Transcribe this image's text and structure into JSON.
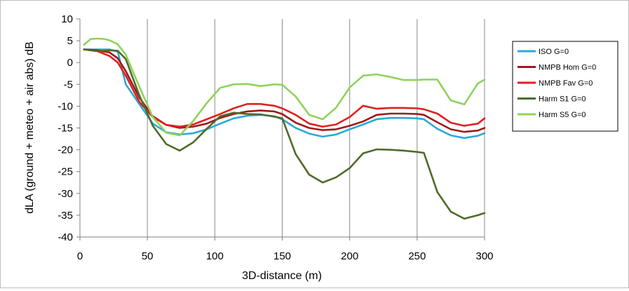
{
  "chart_data": {
    "type": "line",
    "xlabel": "3D-distance (m)",
    "ylabel": "dLA (ground + meteo + air abs)  dB",
    "xlim": [
      0,
      300
    ],
    "ylim": [
      -40,
      10
    ],
    "xticks": [
      0,
      50,
      100,
      150,
      200,
      250,
      300
    ],
    "yticks": [
      10,
      5,
      0,
      -5,
      -10,
      -15,
      -20,
      -25,
      -30,
      -35,
      -40
    ],
    "grid": "vertical",
    "legend_position": "right",
    "series": [
      {
        "name": "ISO G=0",
        "color": "#2aa9d8",
        "x": [
          3,
          13,
          22,
          28,
          34,
          44,
          54,
          64,
          74,
          84,
          94,
          104,
          114,
          124,
          134,
          144,
          150,
          160,
          170,
          180,
          190,
          200,
          210,
          220,
          230,
          240,
          250,
          255,
          265,
          275,
          285,
          295,
          300
        ],
        "y": [
          3,
          3,
          3,
          2.5,
          -5,
          -9.5,
          -14,
          -16,
          -16.5,
          -16.2,
          -15.3,
          -14,
          -12.8,
          -12.2,
          -12,
          -12.3,
          -13,
          -15,
          -16.3,
          -17,
          -16.5,
          -15.3,
          -14.2,
          -13,
          -12.7,
          -12.7,
          -12.8,
          -13,
          -15.2,
          -16.7,
          -17.3,
          -16.8,
          -16.2
        ]
      },
      {
        "name": "NMPB Hom G=0",
        "color": "#9b1c1c",
        "x": [
          3,
          13,
          22,
          28,
          34,
          44,
          54,
          64,
          74,
          84,
          94,
          104,
          114,
          124,
          134,
          144,
          150,
          160,
          170,
          180,
          190,
          200,
          210,
          220,
          230,
          240,
          250,
          255,
          265,
          275,
          285,
          295,
          300
        ],
        "y": [
          3,
          2.8,
          2.3,
          1,
          -2,
          -8,
          -12.3,
          -14.3,
          -15,
          -14.7,
          -14,
          -12.7,
          -11.8,
          -11.2,
          -11,
          -11.2,
          -11.8,
          -13.8,
          -15,
          -15.5,
          -15.3,
          -14.5,
          -13.5,
          -12,
          -11.7,
          -11.7,
          -11.8,
          -12,
          -13.7,
          -15.3,
          -15.9,
          -15.6,
          -15
        ]
      },
      {
        "name": "NMPB Fav G=0",
        "color": "#e02020",
        "x": [
          3,
          13,
          22,
          28,
          34,
          44,
          54,
          64,
          74,
          84,
          94,
          104,
          114,
          124,
          134,
          144,
          150,
          160,
          170,
          180,
          190,
          200,
          210,
          220,
          230,
          240,
          250,
          255,
          265,
          275,
          285,
          295,
          300
        ],
        "y": [
          3,
          2.6,
          1.5,
          0,
          -3,
          -9,
          -12.5,
          -14.3,
          -14.7,
          -14.2,
          -13,
          -11.8,
          -10.5,
          -9.5,
          -9.5,
          -9.9,
          -10.5,
          -12,
          -14,
          -14.7,
          -14.2,
          -12.5,
          -9.9,
          -10.6,
          -10.4,
          -10.4,
          -10.5,
          -10.7,
          -11.7,
          -13.8,
          -14.5,
          -14,
          -12.8
        ]
      },
      {
        "name": "Harm S1 G=0",
        "color": "#4e6b2a",
        "x": [
          3,
          13,
          22,
          28,
          34,
          44,
          54,
          64,
          74,
          84,
          94,
          104,
          114,
          124,
          134,
          144,
          150,
          160,
          170,
          180,
          190,
          200,
          210,
          220,
          230,
          240,
          250,
          255,
          265,
          275,
          285,
          295,
          300
        ],
        "y": [
          3,
          2.6,
          2.8,
          2.7,
          0.8,
          -7.5,
          -14.5,
          -18.7,
          -20.2,
          -18.3,
          -15.2,
          -12.3,
          -11.5,
          -11.8,
          -11.9,
          -12.4,
          -12.8,
          -21,
          -25.7,
          -27.5,
          -26.3,
          -24.2,
          -20.8,
          -19.9,
          -20,
          -20.2,
          -20.5,
          -20.7,
          -29.7,
          -34.2,
          -35.8,
          -35,
          -34.5
        ]
      },
      {
        "name": "Harm S5 G=0",
        "color": "#8ed35c",
        "x": [
          3,
          8,
          13,
          18,
          22,
          28,
          34,
          44,
          54,
          64,
          74,
          84,
          94,
          104,
          114,
          124,
          134,
          144,
          150,
          160,
          170,
          180,
          190,
          200,
          210,
          220,
          230,
          240,
          250,
          255,
          265,
          275,
          285,
          295,
          300
        ],
        "y": [
          4.1,
          5.4,
          5.5,
          5.4,
          5.1,
          4.2,
          1.8,
          -5.5,
          -12.5,
          -16.1,
          -16.7,
          -13.4,
          -9.3,
          -5.8,
          -5,
          -4.9,
          -5.4,
          -5,
          -5.1,
          -7.8,
          -12,
          -13,
          -10.3,
          -5.7,
          -3,
          -2.7,
          -3.3,
          -4,
          -4,
          -3.9,
          -3.9,
          -8.7,
          -9.6,
          -4.8,
          -3.9
        ]
      }
    ]
  }
}
